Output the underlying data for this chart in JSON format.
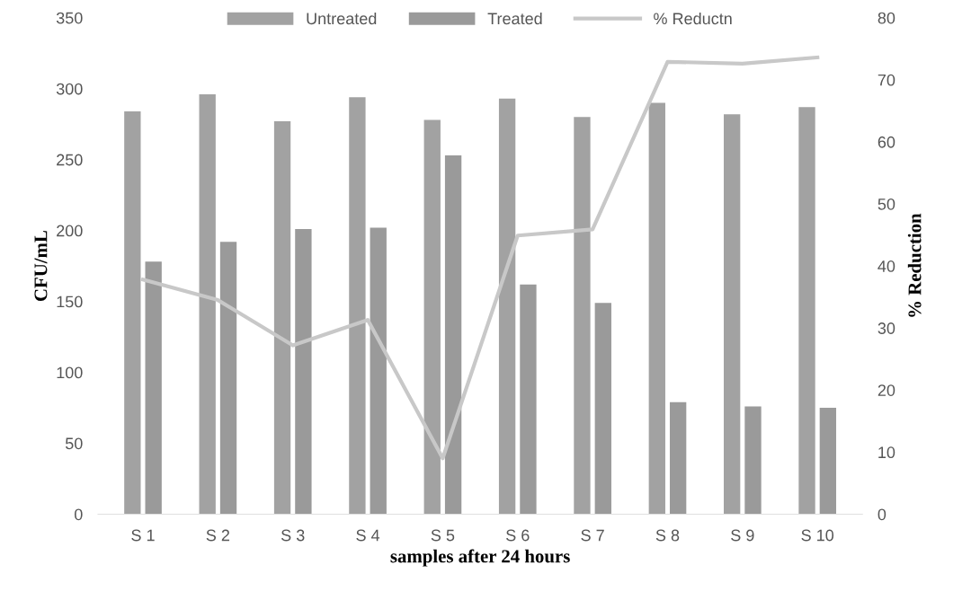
{
  "chart_data": {
    "type": "bar",
    "xlabel": "samples after 24 hours",
    "ylabel": "CFU/mL",
    "y2label": "% Reduction",
    "categories": [
      "S 1",
      "S 2",
      "S 3",
      "S 4",
      "S 5",
      "S 6",
      "S 7",
      "S 8",
      "S 9",
      "S 10"
    ],
    "series": [
      {
        "name": "Untreated",
        "color": "#a2a2a2",
        "values": [
          284,
          296,
          277,
          294,
          278,
          293,
          280,
          290,
          282,
          287
        ]
      },
      {
        "name": "Treated",
        "color": "#9a9a9a",
        "values": [
          178,
          192,
          201,
          202,
          253,
          162,
          149,
          79,
          76,
          75
        ]
      },
      {
        "name": "% Reductn",
        "type": "line",
        "axis": "y2",
        "color": "#c8c8c8",
        "values": [
          37.8,
          34.5,
          27.2,
          31.3,
          9.0,
          44.9,
          45.9,
          72.9,
          72.6,
          73.6
        ]
      }
    ],
    "ylim": [
      0,
      350
    ],
    "yticks": [
      0,
      50,
      100,
      150,
      200,
      250,
      300,
      350
    ],
    "y2lim": [
      0,
      80
    ],
    "y2ticks": [
      0,
      10,
      20,
      30,
      40,
      50,
      60,
      70,
      80
    ],
    "legend": "top",
    "grid": false,
    "marker": "none",
    "line_style": "solid"
  }
}
